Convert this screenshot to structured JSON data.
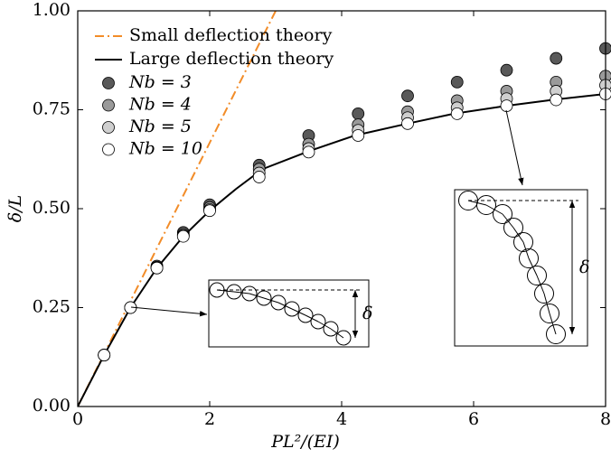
{
  "chart_data": {
    "type": "line_scatter",
    "xlabel": "PL²/(EI)",
    "ylabel": "δ/L",
    "xlim": [
      0,
      8
    ],
    "ylim": [
      0,
      1
    ],
    "xticks": [
      0,
      2,
      4,
      6,
      8
    ],
    "yticks": [
      {
        "value": 0,
        "label": "0.00"
      },
      {
        "value": 0.25,
        "label": "0.25"
      },
      {
        "value": 0.5,
        "label": "0.50"
      },
      {
        "value": 0.75,
        "label": "0.75"
      },
      {
        "value": 1,
        "label": "1.00"
      }
    ],
    "lines": [
      {
        "name": "Small deflection theory",
        "color": "#f28c28",
        "dash": "dashdot",
        "x": [
          0,
          3
        ],
        "values": [
          0,
          1
        ]
      },
      {
        "name": "Large deflection theory",
        "color": "#000000",
        "dash": "solid",
        "x": [
          0,
          0.4,
          0.8,
          1.2,
          1.6,
          2.0,
          2.4,
          2.8,
          3.5,
          4.2,
          5.0,
          5.7,
          6.5,
          7.2,
          8.0
        ],
        "values": [
          0,
          0.13,
          0.25,
          0.35,
          0.43,
          0.495,
          0.55,
          0.6,
          0.645,
          0.685,
          0.715,
          0.74,
          0.76,
          0.775,
          0.79
        ]
      }
    ],
    "x": [
      0.4,
      0.8,
      1.2,
      1.6,
      2.0,
      2.75,
      3.5,
      4.25,
      5.0,
      5.75,
      6.5,
      7.25,
      8.0
    ],
    "series": [
      {
        "name": "Nb = 3",
        "color": "#595959",
        "values": [
          0.13,
          0.25,
          0.355,
          0.44,
          0.51,
          0.61,
          0.685,
          0.74,
          0.785,
          0.82,
          0.85,
          0.88,
          0.905
        ]
      },
      {
        "name": "Nb = 4",
        "color": "#9a9a9a",
        "values": [
          0.13,
          0.25,
          0.352,
          0.435,
          0.503,
          0.6,
          0.663,
          0.712,
          0.745,
          0.773,
          0.797,
          0.82,
          0.835
        ]
      },
      {
        "name": "Nb = 5",
        "color": "#cfcfcf",
        "values": [
          0.13,
          0.25,
          0.35,
          0.432,
          0.498,
          0.59,
          0.652,
          0.698,
          0.73,
          0.755,
          0.778,
          0.797,
          0.812
        ]
      },
      {
        "name": "Nb = 10",
        "color": "#ffffff",
        "values": [
          0.13,
          0.25,
          0.35,
          0.43,
          0.495,
          0.58,
          0.643,
          0.685,
          0.715,
          0.74,
          0.76,
          0.775,
          0.79
        ]
      }
    ],
    "inset_labels": [
      "δ",
      "δ"
    ]
  }
}
